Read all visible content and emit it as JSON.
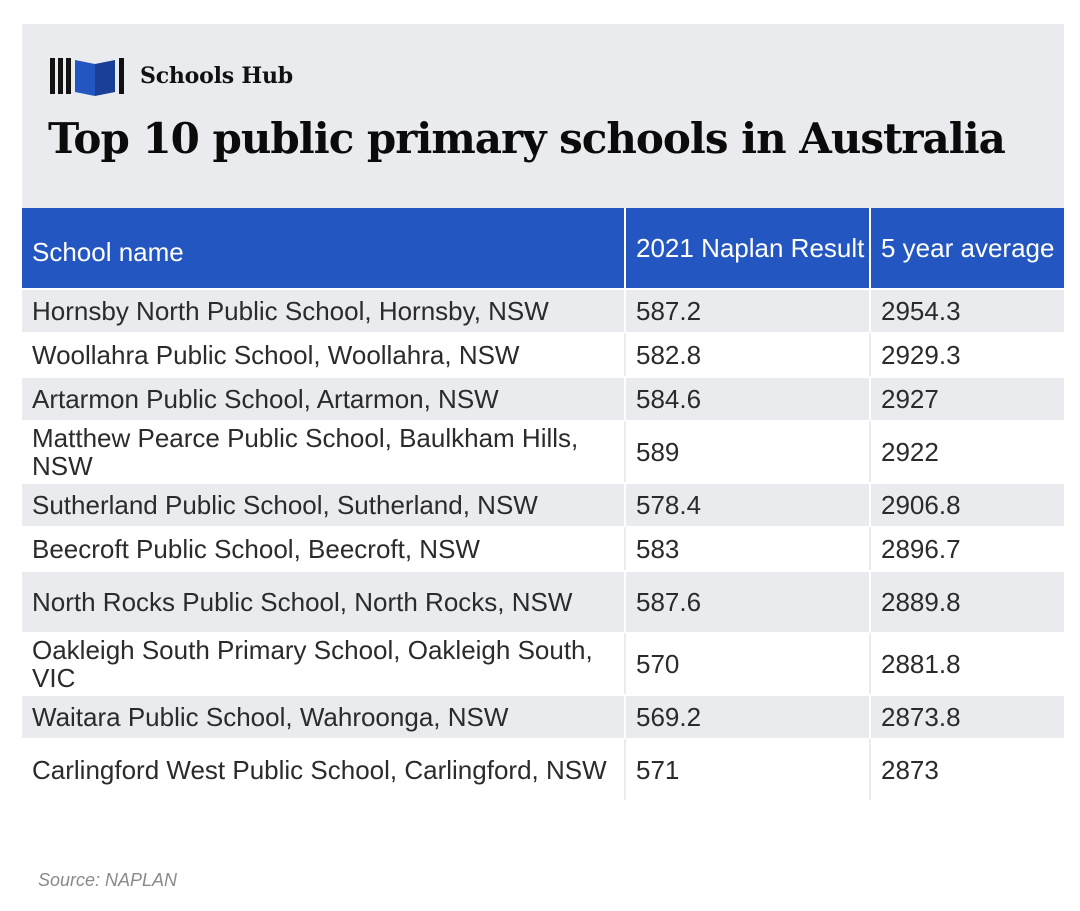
{
  "brand": {
    "name": "Schools Hub",
    "logo_icon": "books-icon",
    "logo_color": "#111111",
    "logo_accent": "#2456c2"
  },
  "title": "Top 10 public primary schools in Australia",
  "colors": {
    "header_bg": "#e9ebee",
    "table_header_bg": "#2456c2",
    "row_alt_bg": "#e9ebee"
  },
  "table": {
    "headers": [
      "School name",
      "2021 Naplan Result",
      "5 year average"
    ],
    "rows": [
      {
        "school": "Hornsby North Public School, Hornsby, NSW",
        "naplan": "587.2",
        "avg": "2954.3"
      },
      {
        "school": "Woollahra Public School, Woollahra, NSW",
        "naplan": "582.8",
        "avg": "2929.3"
      },
      {
        "school": "Artarmon Public School, Artarmon, NSW",
        "naplan": "584.6",
        "avg": "2927"
      },
      {
        "school": "Matthew Pearce Public School, Baulkham Hills, NSW",
        "naplan": "589",
        "avg": "2922"
      },
      {
        "school": "Sutherland Public School, Sutherland, NSW",
        "naplan": "578.4",
        "avg": "2906.8"
      },
      {
        "school": "Beecroft Public School, Beecroft, NSW",
        "naplan": "583",
        "avg": "2896.7"
      },
      {
        "school": "North Rocks Public School, North Rocks, NSW",
        "naplan": "587.6",
        "avg": "2889.8"
      },
      {
        "school": "Oakleigh South Primary School, Oakleigh South, VIC",
        "naplan": "570",
        "avg": "2881.8"
      },
      {
        "school": "Waitara Public School, Wahroonga, NSW",
        "naplan": "569.2",
        "avg": "2873.8"
      },
      {
        "school": "Carlingford West Public School, Carlingford, NSW",
        "naplan": "571",
        "avg": "2873"
      }
    ]
  },
  "source": "Source: NAPLAN",
  "chart_data": {
    "type": "table",
    "title": "Top 10 public primary schools in Australia",
    "columns": [
      "School name",
      "2021 Naplan Result",
      "5 year average"
    ],
    "rows": [
      [
        "Hornsby North Public School, Hornsby, NSW",
        587.2,
        2954.3
      ],
      [
        "Woollahra Public School, Woollahra, NSW",
        582.8,
        2929.3
      ],
      [
        "Artarmon Public School, Artarmon, NSW",
        584.6,
        2927
      ],
      [
        "Matthew Pearce Public School, Baulkham Hills, NSW",
        589,
        2922
      ],
      [
        "Sutherland Public School, Sutherland, NSW",
        578.4,
        2906.8
      ],
      [
        "Beecroft Public School, Beecroft, NSW",
        583,
        2896.7
      ],
      [
        "North Rocks Public School, North Rocks, NSW",
        587.6,
        2889.8
      ],
      [
        "Oakleigh South Primary School, Oakleigh South, VIC",
        570,
        2881.8
      ],
      [
        "Waitara Public School, Wahroonga, NSW",
        569.2,
        2873.8
      ],
      [
        "Carlingford West Public School, Carlingford, NSW",
        571,
        2873
      ]
    ]
  }
}
